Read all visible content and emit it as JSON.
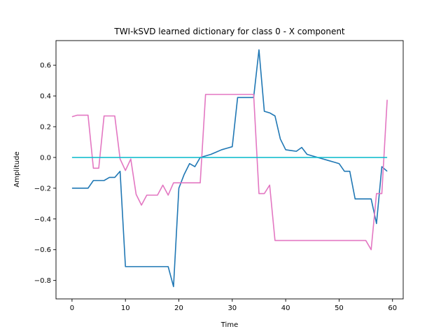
{
  "chart_data": {
    "type": "line",
    "title": "TWI-kSVD learned dictionary for class 0 - X component",
    "xlabel": "Time",
    "ylabel": "Amplitude",
    "xlim": [
      -3,
      62
    ],
    "ylim": [
      -0.92,
      0.76
    ],
    "xticks": [
      0,
      10,
      20,
      30,
      40,
      50,
      60
    ],
    "yticks": [
      -0.8,
      -0.6,
      -0.4,
      -0.2,
      0.0,
      0.2,
      0.4,
      0.6
    ],
    "ytick_labels": [
      "−0.8",
      "−0.6",
      "−0.4",
      "−0.2",
      "0.0",
      "0.2",
      "0.4",
      "0.6"
    ],
    "grid": false,
    "series": [
      {
        "color": "#1f77b4",
        "x": [
          0,
          1,
          2,
          3,
          4,
          5,
          6,
          7,
          8,
          9,
          10,
          11,
          12,
          13,
          14,
          15,
          16,
          17,
          18,
          19,
          20,
          21,
          22,
          23,
          24,
          25,
          26,
          27,
          28,
          29,
          30,
          31,
          32,
          33,
          34,
          35,
          36,
          37,
          38,
          39,
          40,
          41,
          42,
          43,
          44,
          45,
          46,
          47,
          48,
          49,
          50,
          51,
          52,
          53,
          54,
          55,
          56,
          57,
          58,
          59
        ],
        "values": [
          -0.2,
          -0.2,
          -0.2,
          -0.2,
          -0.15,
          -0.15,
          -0.15,
          -0.13,
          -0.13,
          -0.09,
          -0.71,
          -0.71,
          -0.71,
          -0.71,
          -0.71,
          -0.71,
          -0.71,
          -0.71,
          -0.71,
          -0.84,
          -0.2,
          -0.11,
          -0.04,
          -0.06,
          0.0,
          0.01,
          0.02,
          0.035,
          0.05,
          0.06,
          0.07,
          0.39,
          0.39,
          0.39,
          0.39,
          0.7,
          0.3,
          0.29,
          0.27,
          0.12,
          0.05,
          0.045,
          0.04,
          0.065,
          0.02,
          0.01,
          0.0,
          -0.01,
          -0.02,
          -0.03,
          -0.04,
          -0.09,
          -0.09,
          -0.27,
          -0.27,
          -0.27,
          -0.27,
          -0.43,
          -0.06,
          -0.09
        ]
      },
      {
        "color": "#e377c2",
        "x": [
          0,
          1,
          2,
          3,
          4,
          5,
          6,
          7,
          8,
          9,
          10,
          11,
          12,
          13,
          14,
          15,
          16,
          17,
          18,
          19,
          20,
          21,
          22,
          23,
          24,
          25,
          26,
          27,
          28,
          29,
          30,
          31,
          32,
          33,
          34,
          35,
          36,
          37,
          38,
          39,
          40,
          41,
          42,
          43,
          44,
          45,
          46,
          47,
          48,
          49,
          50,
          51,
          52,
          53,
          54,
          55,
          56,
          57,
          58,
          59
        ],
        "values": [
          0.265,
          0.275,
          0.275,
          0.275,
          -0.07,
          -0.07,
          0.27,
          0.27,
          0.27,
          -0.01,
          -0.085,
          -0.01,
          -0.24,
          -0.31,
          -0.245,
          -0.245,
          -0.245,
          -0.18,
          -0.245,
          -0.165,
          -0.165,
          -0.165,
          -0.165,
          -0.165,
          -0.165,
          0.41,
          0.41,
          0.41,
          0.41,
          0.41,
          0.41,
          0.41,
          0.41,
          0.41,
          0.41,
          -0.235,
          -0.235,
          -0.18,
          -0.54,
          -0.54,
          -0.54,
          -0.54,
          -0.54,
          -0.54,
          -0.54,
          -0.54,
          -0.54,
          -0.54,
          -0.54,
          -0.54,
          -0.54,
          -0.54,
          -0.54,
          -0.54,
          -0.54,
          -0.54,
          -0.6,
          -0.235,
          -0.235,
          0.375
        ]
      },
      {
        "color": "#17becf",
        "x": [
          0,
          59
        ],
        "values": [
          0.0,
          0.0
        ]
      }
    ]
  }
}
